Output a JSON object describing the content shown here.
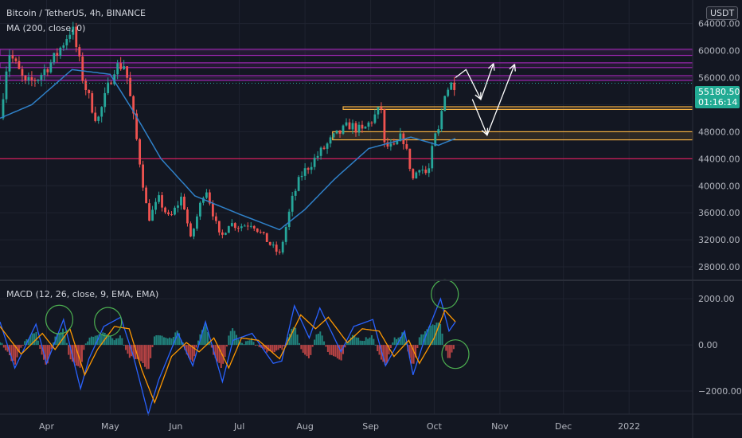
{
  "header": {
    "symbol_line": "Bitcoin / TetherUS, 4h, BINANCE",
    "ma_label": "MA (200, close, 0)",
    "currency_button": "USDT"
  },
  "price_badge": {
    "value": "55180.50",
    "timer": "01:16:14",
    "color": "#22ab94"
  },
  "macd_label": "MACD (12, 26, close, 9, EMA, EMA)",
  "colors": {
    "background": "#131722",
    "grid": "#1f2330",
    "up": "#26a69a",
    "down": "#ef5350",
    "ma": "#2f80c8",
    "macd_line": "#2962ff",
    "signal_line": "#ff9800",
    "zone_purple": "#9c27b0",
    "zone_orange": "#f5b041",
    "support_line": "#e91e63",
    "annotation": "#ffffff",
    "circle": "#4caf50",
    "axis_text": "#b2b5be"
  },
  "chart_data": [
    {
      "type": "candlestick",
      "title": "Bitcoin / TetherUS, 4h, BINANCE",
      "x_ticks": [
        "Apr",
        "May",
        "Jun",
        "Jul",
        "Aug",
        "Sep",
        "Oct",
        "Nov",
        "Dec",
        "2022"
      ],
      "y_ticks": [
        28000,
        32000,
        36000,
        40000,
        44000,
        48000,
        52000,
        56000,
        60000,
        64000
      ],
      "y_tick_labels": [
        "28000.00",
        "32000.00",
        "36000.00",
        "40000.00",
        "44000.00",
        "48000.00",
        "52000.00",
        "56000.00",
        "60000.00",
        "64000.00"
      ],
      "ylim": [
        26000,
        67500
      ],
      "x_range": [
        "2021-03-10",
        "2022-01-31"
      ],
      "price_anchors": [
        [
          "2021-03-10",
          50000
        ],
        [
          "2021-03-14",
          60000
        ],
        [
          "2021-03-22",
          55000
        ],
        [
          "2021-03-28",
          56000
        ],
        [
          "2021-04-05",
          59000
        ],
        [
          "2021-04-13",
          63500
        ],
        [
          "2021-04-18",
          56000
        ],
        [
          "2021-04-22",
          52000
        ],
        [
          "2021-04-25",
          49500
        ],
        [
          "2021-05-03",
          57500
        ],
        [
          "2021-05-08",
          58000
        ],
        [
          "2021-05-12",
          50000
        ],
        [
          "2021-05-19",
          35000
        ],
        [
          "2021-05-24",
          38000
        ],
        [
          "2021-05-29",
          35000
        ],
        [
          "2021-06-04",
          38500
        ],
        [
          "2021-06-08",
          32000
        ],
        [
          "2021-06-15",
          40000
        ],
        [
          "2021-06-22",
          32000
        ],
        [
          "2021-06-26",
          34500
        ],
        [
          "2021-07-01",
          34000
        ],
        [
          "2021-07-07",
          34500
        ],
        [
          "2021-07-15",
          31500
        ],
        [
          "2021-07-20",
          29800
        ],
        [
          "2021-07-26",
          38000
        ],
        [
          "2021-07-30",
          41500
        ],
        [
          "2021-08-07",
          44500
        ],
        [
          "2021-08-14",
          47000
        ],
        [
          "2021-08-22",
          49000
        ],
        [
          "2021-08-28",
          48000
        ],
        [
          "2021-09-06",
          51500
        ],
        [
          "2021-09-07",
          46000
        ],
        [
          "2021-09-12",
          45500
        ],
        [
          "2021-09-16",
          47500
        ],
        [
          "2021-09-21",
          41000
        ],
        [
          "2021-09-24",
          43000
        ],
        [
          "2021-09-28",
          41500
        ],
        [
          "2021-10-01",
          47000
        ],
        [
          "2021-10-03",
          48000
        ],
        [
          "2021-10-06",
          54000
        ],
        [
          "2021-10-09",
          55000
        ],
        [
          "2021-10-11",
          55180.5
        ]
      ],
      "ma200_anchors": [
        [
          "2021-03-10",
          50000
        ],
        [
          "2021-03-25",
          52000
        ],
        [
          "2021-04-13",
          57200
        ],
        [
          "2021-05-01",
          56500
        ],
        [
          "2021-05-12",
          51000
        ],
        [
          "2021-05-25",
          44000
        ],
        [
          "2021-06-10",
          38500
        ],
        [
          "2021-07-01",
          35800
        ],
        [
          "2021-07-20",
          33500
        ],
        [
          "2021-08-01",
          36500
        ],
        [
          "2021-08-15",
          41000
        ],
        [
          "2021-08-31",
          45500
        ],
        [
          "2021-09-20",
          47200
        ],
        [
          "2021-10-03",
          46000
        ],
        [
          "2021-10-11",
          47000
        ]
      ],
      "zones": [
        {
          "kind": "purple",
          "low": 59300,
          "high": 60200,
          "x_from": "2021-03-10"
        },
        {
          "kind": "purple",
          "low": 57500,
          "high": 58200,
          "x_from": "2021-03-10"
        },
        {
          "kind": "purple",
          "low": 55600,
          "high": 56300,
          "x_from": "2021-03-10"
        },
        {
          "kind": "orange",
          "low": 51300,
          "high": 51700,
          "x_from": "2021-08-19"
        },
        {
          "kind": "orange",
          "low": 46800,
          "high": 48000,
          "x_from": "2021-08-14"
        },
        {
          "kind": "support",
          "low": 44000,
          "high": 44000,
          "x_from": "2021-03-10"
        }
      ],
      "projection_paths": [
        [
          [
            "2021-10-11",
            56000
          ],
          [
            "2021-10-16",
            57200
          ],
          [
            "2021-10-23",
            52800
          ],
          [
            "2021-10-29",
            58100
          ]
        ],
        [
          [
            "2021-10-19",
            52800
          ],
          [
            "2021-10-26",
            47500
          ],
          [
            "2021-11-08",
            58000
          ]
        ]
      ],
      "last_price": 55180.5
    },
    {
      "type": "line",
      "title": "MACD (12, 26, close, 9, EMA, EMA)",
      "y_ticks": [
        -2000,
        0,
        2000
      ],
      "y_tick_labels": [
        "−2000.00",
        "0.00",
        "2000.00"
      ],
      "ylim": [
        -3000,
        2800
      ],
      "series": [
        {
          "key": "macd",
          "points": [
            [
              "2021-03-10",
              1000
            ],
            [
              "2021-03-17",
              -1000
            ],
            [
              "2021-03-27",
              900
            ],
            [
              "2021-04-01",
              -800
            ],
            [
              "2021-04-09",
              1100
            ],
            [
              "2021-04-17",
              -1900
            ],
            [
              "2021-04-21",
              -600
            ],
            [
              "2021-04-28",
              800
            ],
            [
              "2021-05-06",
              1200
            ],
            [
              "2021-05-12",
              -500
            ],
            [
              "2021-05-19",
              -3000
            ],
            [
              "2021-05-24",
              -1500
            ],
            [
              "2021-06-02",
              500
            ],
            [
              "2021-06-09",
              -900
            ],
            [
              "2021-06-15",
              1000
            ],
            [
              "2021-06-23",
              -1600
            ],
            [
              "2021-06-28",
              200
            ],
            [
              "2021-07-07",
              500
            ],
            [
              "2021-07-17",
              -800
            ],
            [
              "2021-07-21",
              -700
            ],
            [
              "2021-07-27",
              1700
            ],
            [
              "2021-08-03",
              300
            ],
            [
              "2021-08-08",
              1600
            ],
            [
              "2021-08-18",
              -300
            ],
            [
              "2021-08-24",
              800
            ],
            [
              "2021-09-02",
              1100
            ],
            [
              "2021-09-08",
              -900
            ],
            [
              "2021-09-17",
              600
            ],
            [
              "2021-09-21",
              -1300
            ],
            [
              "2021-09-27",
              400
            ],
            [
              "2021-10-04",
              2000
            ],
            [
              "2021-10-08",
              600
            ],
            [
              "2021-10-11",
              1000
            ]
          ]
        },
        {
          "key": "signal",
          "points": [
            [
              "2021-03-10",
              800
            ],
            [
              "2021-03-20",
              -400
            ],
            [
              "2021-03-30",
              500
            ],
            [
              "2021-04-05",
              -200
            ],
            [
              "2021-04-12",
              700
            ],
            [
              "2021-04-19",
              -1300
            ],
            [
              "2021-04-25",
              -200
            ],
            [
              "2021-05-03",
              800
            ],
            [
              "2021-05-10",
              700
            ],
            [
              "2021-05-16",
              -1100
            ],
            [
              "2021-05-22",
              -2500
            ],
            [
              "2021-05-30",
              -500
            ],
            [
              "2021-06-06",
              100
            ],
            [
              "2021-06-12",
              -300
            ],
            [
              "2021-06-19",
              300
            ],
            [
              "2021-06-26",
              -1000
            ],
            [
              "2021-07-02",
              300
            ],
            [
              "2021-07-10",
              200
            ],
            [
              "2021-07-20",
              -600
            ],
            [
              "2021-07-30",
              1300
            ],
            [
              "2021-08-06",
              700
            ],
            [
              "2021-08-12",
              1200
            ],
            [
              "2021-08-21",
              100
            ],
            [
              "2021-08-28",
              700
            ],
            [
              "2021-09-05",
              600
            ],
            [
              "2021-09-12",
              -500
            ],
            [
              "2021-09-19",
              200
            ],
            [
              "2021-09-24",
              -800
            ],
            [
              "2021-10-01",
              300
            ],
            [
              "2021-10-06",
              1500
            ],
            [
              "2021-10-11",
              1000
            ]
          ]
        }
      ]
    }
  ],
  "annotations": {
    "circles": [
      {
        "x": "2021-04-07",
        "y": 1100
      },
      {
        "x": "2021-04-30",
        "y": 1000
      },
      {
        "x": "2021-10-06",
        "y": 2200
      },
      {
        "x": "2021-10-11",
        "y": -400
      }
    ]
  }
}
